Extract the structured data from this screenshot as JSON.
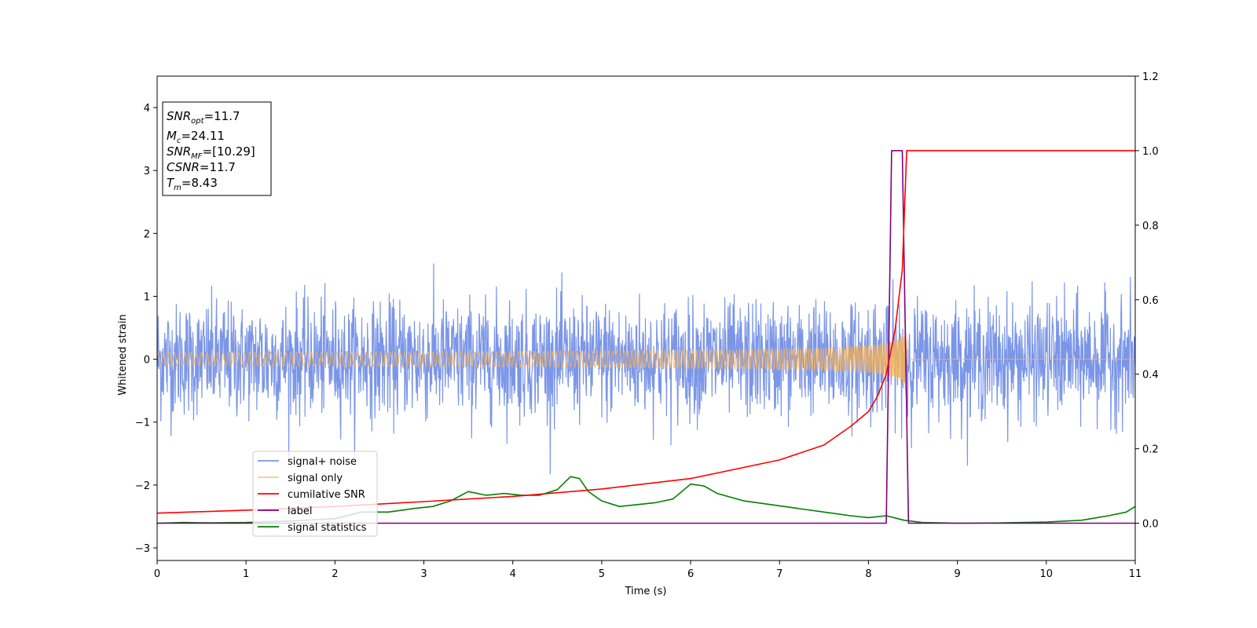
{
  "chart_data": {
    "type": "line",
    "title": "",
    "xlabel": "Time (s)",
    "ylabel": "Whitened strain",
    "xlim": [
      0,
      11
    ],
    "ylim": [
      -3.2,
      4.5
    ],
    "y2lim": [
      -0.1,
      1.2
    ],
    "x_ticks": [
      0,
      1,
      2,
      3,
      4,
      5,
      6,
      7,
      8,
      9,
      10,
      11
    ],
    "y_ticks": [
      -3,
      -2,
      -1,
      0,
      1,
      2,
      3,
      4
    ],
    "y2_ticks": [
      0.0,
      0.2,
      0.4,
      0.6,
      0.8,
      1.0,
      1.2
    ],
    "grid": false,
    "legend_position": "lower-left",
    "annotation_lines": [
      {
        "label": "SNR",
        "sub": "opt",
        "value": "=11.7"
      },
      {
        "label": "M",
        "sub": "c",
        "value": "=24.11"
      },
      {
        "label": "SNR",
        "sub": "MF",
        "value": "=[10.29]"
      },
      {
        "label": "CSNR",
        "sub": "",
        "value": "=11.7"
      },
      {
        "label": "T",
        "sub": "m",
        "value": "=8.43"
      }
    ],
    "series": [
      {
        "name": "signal+ noise",
        "color": "#7b96e8",
        "axis": "left",
        "description_values": {
          "noise_std": 0.45,
          "max_peak": 1.77,
          "min_peak": -1.83
        }
      },
      {
        "name": "signal only",
        "color": "#f5b45c",
        "axis": "left",
        "chirp_end": 8.43,
        "peak_amplitude": 0.75
      },
      {
        "name": "cumilative SNR",
        "color": "#ff0000",
        "axis": "right",
        "x": [
          0,
          1,
          2,
          3,
          4,
          5,
          6,
          7,
          7.5,
          7.8,
          8.0,
          8.1,
          8.2,
          8.3,
          8.38,
          8.43,
          8.43,
          11
        ],
        "y": [
          0.027,
          0.035,
          0.045,
          0.058,
          0.072,
          0.092,
          0.12,
          0.17,
          0.21,
          0.26,
          0.3,
          0.34,
          0.4,
          0.52,
          0.68,
          1.0,
          1.0,
          1.0
        ]
      },
      {
        "name": "label",
        "color": "#800080",
        "axis": "right",
        "x": [
          0,
          8.2,
          8.26,
          8.38,
          8.45,
          11
        ],
        "y": [
          0.0,
          0.0,
          1.0,
          1.0,
          0.0,
          0.0
        ]
      },
      {
        "name": "signal statistics",
        "color": "#008000",
        "axis": "right",
        "x": [
          0,
          0.3,
          0.6,
          1.0,
          1.5,
          2.0,
          2.3,
          2.6,
          2.9,
          3.1,
          3.3,
          3.5,
          3.7,
          3.9,
          4.1,
          4.3,
          4.5,
          4.65,
          4.75,
          4.85,
          5.0,
          5.2,
          5.4,
          5.6,
          5.8,
          6.0,
          6.15,
          6.3,
          6.6,
          6.9,
          7.2,
          7.5,
          7.8,
          8.0,
          8.2,
          8.4,
          8.6,
          9.0,
          9.5,
          10.0,
          10.4,
          10.7,
          10.9,
          11.0
        ],
        "y": [
          0.0,
          0.002,
          0.001,
          0.002,
          0.006,
          0.012,
          0.03,
          0.03,
          0.04,
          0.045,
          0.06,
          0.085,
          0.075,
          0.08,
          0.075,
          0.075,
          0.09,
          0.125,
          0.12,
          0.085,
          0.06,
          0.045,
          0.05,
          0.055,
          0.065,
          0.105,
          0.1,
          0.08,
          0.06,
          0.05,
          0.04,
          0.03,
          0.02,
          0.015,
          0.02,
          0.008,
          0.002,
          0.0,
          0.001,
          0.003,
          0.008,
          0.02,
          0.03,
          0.045
        ]
      }
    ]
  }
}
